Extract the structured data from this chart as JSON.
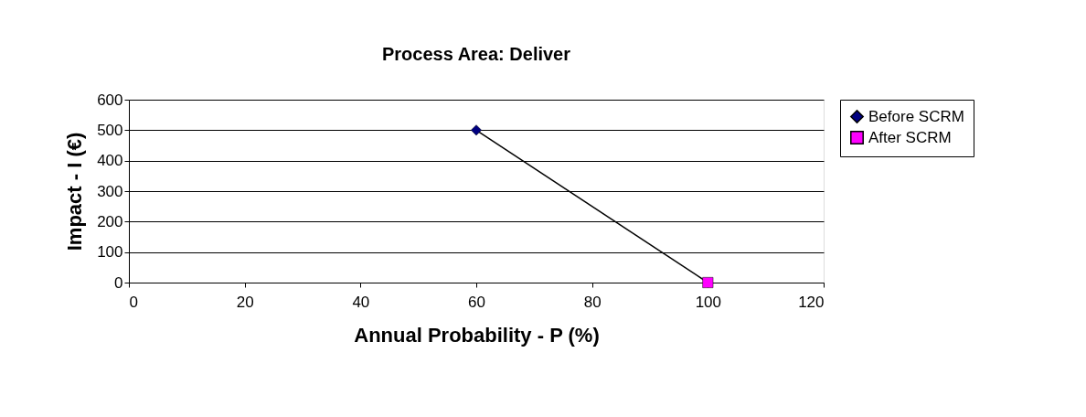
{
  "chart_data": {
    "type": "scatter",
    "title": "Process Area: Deliver",
    "xlabel": "Annual Probability - P (%)",
    "ylabel": "Impact - I (€)",
    "x": [
      60,
      100
    ],
    "series": [
      {
        "name": "Before SCRM",
        "color": "#000080",
        "marker": "diamond",
        "values": [
          500,
          null
        ]
      },
      {
        "name": "After SCRM",
        "color": "#ff00ff",
        "marker": "square",
        "values": [
          null,
          0
        ]
      },
      {
        "type": "line",
        "color": "#000000",
        "marker": "none",
        "line_style": "solid",
        "values": [
          500,
          0
        ]
      }
    ],
    "xlim": [
      0,
      120
    ],
    "xticks": [
      0,
      20,
      40,
      60,
      80,
      100,
      120
    ],
    "ylim": [
      0,
      600
    ],
    "yticks": [
      0,
      100,
      200,
      300,
      400,
      500,
      600
    ],
    "grid": "y",
    "legend": "right"
  }
}
